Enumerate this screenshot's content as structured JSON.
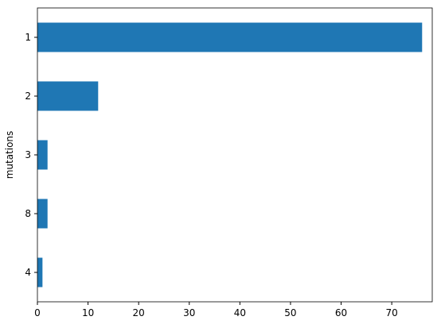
{
  "chart_data": {
    "type": "barh",
    "y_label": "mutations",
    "categories": [
      "1",
      "2",
      "3",
      "8",
      "4"
    ],
    "values": [
      76,
      12,
      2,
      2,
      1
    ],
    "color": "#1f77b4",
    "xlim": [
      0,
      78
    ],
    "xticks": [
      0,
      10,
      20,
      30,
      40,
      50,
      60,
      70
    ]
  }
}
